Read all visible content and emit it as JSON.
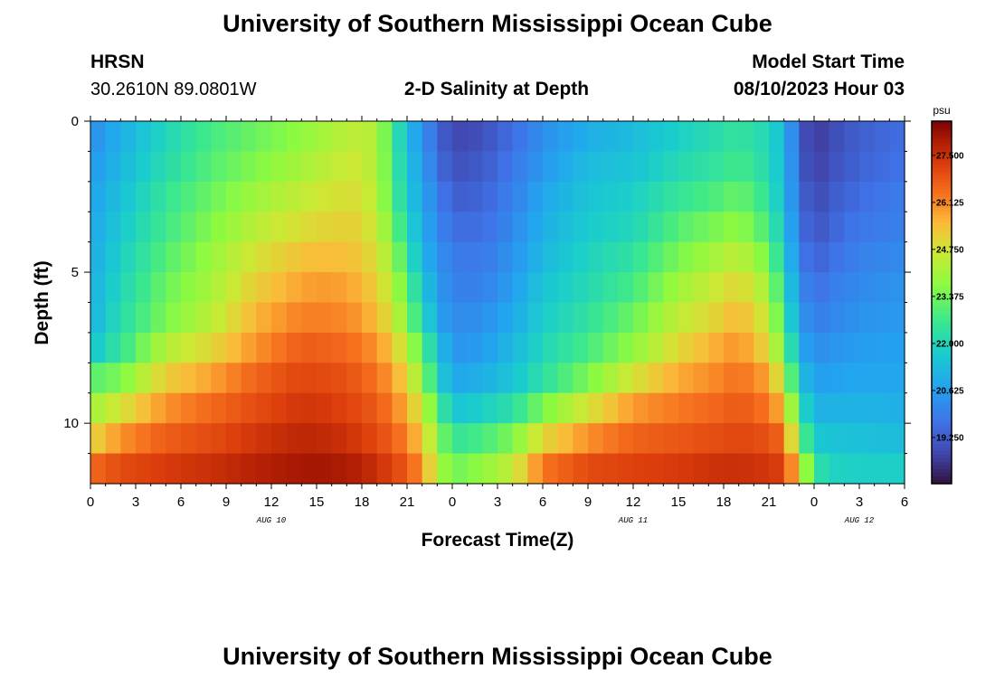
{
  "header": {
    "title": "University of Southern Mississippi Ocean Cube",
    "station": "HRSN",
    "coords": "30.2610N  89.0801W",
    "start_label": "Model Start Time",
    "start_value": "08/10/2023 Hour 03",
    "footer_title": "University of Southern Mississippi Ocean Cube"
  },
  "chart_data": {
    "type": "heatmap",
    "title": "2-D Salinity at Depth",
    "xlabel": "Forecast Time(Z)",
    "ylabel": "Depth (ft)",
    "x_ticks": [
      "0",
      "3",
      "6",
      "9",
      "12",
      "15",
      "18",
      "21",
      "0",
      "3",
      "6",
      "9",
      "12",
      "15",
      "18",
      "21",
      "0",
      "3",
      "6"
    ],
    "x_range_hours": [
      0,
      54
    ],
    "date_labels": [
      {
        "label": "AUG 10",
        "hour": 12
      },
      {
        "label": "AUG 11",
        "hour": 36
      },
      {
        "label": "AUG 12",
        "hour": 51
      }
    ],
    "y_ticks": [
      "0",
      "5",
      "10"
    ],
    "y_range_ft": [
      0,
      12
    ],
    "colorbar": {
      "unit": "psu",
      "min": 17.9,
      "max": 28.5,
      "ticks": [
        "27.500",
        "26.125",
        "24.750",
        "23.375",
        "22.000",
        "20.625",
        "19.250"
      ],
      "tick_values": [
        27.5,
        26.125,
        24.75,
        23.375,
        22.0,
        20.625,
        19.25
      ]
    },
    "depth_levels_ft": [
      0.5,
      1.5,
      2.5,
      3.5,
      4.5,
      5.5,
      6.5,
      7.5,
      8.5,
      9.5,
      10.5,
      11.5
    ],
    "time_step_hours": 1,
    "key_times_hours": [
      0,
      2,
      5,
      8,
      11,
      14,
      16,
      18,
      19,
      20,
      21,
      22,
      23,
      24,
      26,
      28,
      30,
      33,
      36,
      39,
      42,
      43,
      45,
      46,
      47,
      48,
      49,
      51,
      54
    ],
    "profiles_psu": [
      [
        20.3,
        20.5,
        20.7,
        20.8,
        20.9,
        21.0,
        21.0,
        21.5,
        23.0,
        24.0,
        25.0,
        26.5
      ],
      [
        21.0,
        21.2,
        21.4,
        21.6,
        21.8,
        22.0,
        22.2,
        22.5,
        23.5,
        24.8,
        26.0,
        27.0
      ],
      [
        22.0,
        22.2,
        22.5,
        22.7,
        23.0,
        23.3,
        23.5,
        24.3,
        25.2,
        26.0,
        26.7,
        27.3
      ],
      [
        22.8,
        23.0,
        23.3,
        23.6,
        23.9,
        24.1,
        24.4,
        25.0,
        25.8,
        26.5,
        27.0,
        27.5
      ],
      [
        23.3,
        23.6,
        24.0,
        24.4,
        24.8,
        25.2,
        25.6,
        26.0,
        26.6,
        27.0,
        27.4,
        27.8
      ],
      [
        23.8,
        24.1,
        24.5,
        24.9,
        25.4,
        25.8,
        26.2,
        26.7,
        27.1,
        27.4,
        27.7,
        28.0
      ],
      [
        24.2,
        24.5,
        24.8,
        25.1,
        25.5,
        25.9,
        26.2,
        26.6,
        27.0,
        27.3,
        27.6,
        28.0
      ],
      [
        24.5,
        24.7,
        24.9,
        25.1,
        25.3,
        25.6,
        25.9,
        26.3,
        26.7,
        27.0,
        27.3,
        27.8
      ],
      [
        24.2,
        24.2,
        24.3,
        24.5,
        24.8,
        25.1,
        25.4,
        25.9,
        26.3,
        26.7,
        27.0,
        27.5
      ],
      [
        22.8,
        22.9,
        23.0,
        23.5,
        24.0,
        24.4,
        24.8,
        25.4,
        25.9,
        26.3,
        26.7,
        27.2
      ],
      [
        21.3,
        21.5,
        21.7,
        22.0,
        22.5,
        23.0,
        23.5,
        24.3,
        25.0,
        25.6,
        26.1,
        26.7
      ],
      [
        20.4,
        20.6,
        20.8,
        21.0,
        21.2,
        21.7,
        22.2,
        23.0,
        23.8,
        24.6,
        25.3,
        26.0
      ],
      [
        19.5,
        19.7,
        20.0,
        20.2,
        20.4,
        20.6,
        20.8,
        21.5,
        22.0,
        23.0,
        23.8,
        24.3
      ],
      [
        18.8,
        19.0,
        19.3,
        19.6,
        19.9,
        20.0,
        20.2,
        20.4,
        20.8,
        21.5,
        22.5,
        23.3
      ],
      [
        19.0,
        19.2,
        19.4,
        19.6,
        19.8,
        20.0,
        20.3,
        20.6,
        21.0,
        21.8,
        22.8,
        23.8
      ],
      [
        19.6,
        19.8,
        20.0,
        20.2,
        20.4,
        20.6,
        20.9,
        21.2,
        21.5,
        22.3,
        23.5,
        24.5
      ],
      [
        20.3,
        20.5,
        20.8,
        21.0,
        21.2,
        21.5,
        21.7,
        22.0,
        22.3,
        23.5,
        25.0,
        26.3
      ],
      [
        21.0,
        21.3,
        21.5,
        21.7,
        21.9,
        22.1,
        22.4,
        22.8,
        23.5,
        24.8,
        26.0,
        27.0
      ],
      [
        21.3,
        21.5,
        21.8,
        22.0,
        22.4,
        22.8,
        23.3,
        23.8,
        24.8,
        25.9,
        26.6,
        27.2
      ],
      [
        21.8,
        22.1,
        22.5,
        23.0,
        23.5,
        24.0,
        24.5,
        25.0,
        25.7,
        26.3,
        26.8,
        27.3
      ],
      [
        22.3,
        22.5,
        23.0,
        23.6,
        24.2,
        24.8,
        25.2,
        25.8,
        26.2,
        26.6,
        27.0,
        27.5
      ],
      [
        22.5,
        22.8,
        23.3,
        23.8,
        24.5,
        25.1,
        25.6,
        26.0,
        26.4,
        26.8,
        27.1,
        27.5
      ],
      [
        22.0,
        22.1,
        22.4,
        22.8,
        23.4,
        24.0,
        24.5,
        25.0,
        25.8,
        26.3,
        26.9,
        27.4
      ],
      [
        21.3,
        21.3,
        21.3,
        21.5,
        21.8,
        22.2,
        22.6,
        23.3,
        24.3,
        25.5,
        26.5,
        27.2
      ],
      [
        19.3,
        19.4,
        19.6,
        19.8,
        20.0,
        20.3,
        20.6,
        21.0,
        21.6,
        22.5,
        23.5,
        25.0
      ],
      [
        18.5,
        18.6,
        18.8,
        19.0,
        19.3,
        19.6,
        19.9,
        20.2,
        20.6,
        21.0,
        21.6,
        22.5
      ],
      [
        18.9,
        19.0,
        19.2,
        19.4,
        19.6,
        19.9,
        20.1,
        20.4,
        20.7,
        21.1,
        21.5,
        21.9
      ],
      [
        19.3,
        19.4,
        19.6,
        19.8,
        20.0,
        20.2,
        20.4,
        20.6,
        20.8,
        21.1,
        21.4,
        21.8
      ],
      [
        19.6,
        19.7,
        19.9,
        20.0,
        20.2,
        20.4,
        20.5,
        20.7,
        20.8,
        21.0,
        21.3,
        21.8
      ]
    ]
  }
}
